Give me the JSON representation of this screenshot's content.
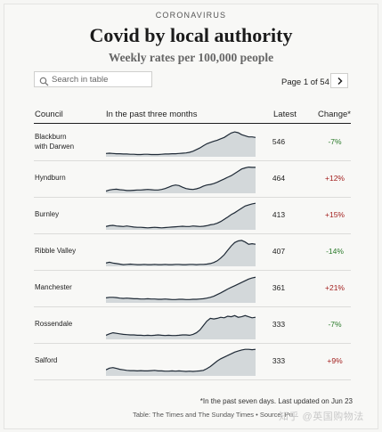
{
  "header": {
    "kicker": "CORONAVIRUS",
    "title": "Covid by local authority",
    "subtitle": "Weekly rates per 100,000 people"
  },
  "search": {
    "placeholder": "Search in table",
    "icon": "search-icon"
  },
  "pager": {
    "label": "Page 1 of 54",
    "next_icon": "chevron-right-icon"
  },
  "table": {
    "columns": {
      "council": "Council",
      "trend": "In the past three months",
      "latest": "Latest",
      "change": "Change*"
    },
    "colors": {
      "spark_fill": "#d3d8da",
      "spark_line": "#1f2a36",
      "positive": "#a3201f",
      "negative": "#2a7a2a"
    },
    "rows": [
      {
        "council": [
          "Blackburn",
          "with Darwen"
        ],
        "latest": "546",
        "change": "-7%",
        "direction": "down",
        "trend": [
          0.12,
          0.13,
          0.12,
          0.11,
          0.11,
          0.1,
          0.1,
          0.09,
          0.09,
          0.08,
          0.08,
          0.09,
          0.09,
          0.08,
          0.08,
          0.08,
          0.09,
          0.1,
          0.1,
          0.11,
          0.11,
          0.12,
          0.13,
          0.14,
          0.16,
          0.2,
          0.26,
          0.32,
          0.4,
          0.47,
          0.52,
          0.56,
          0.6,
          0.65,
          0.7,
          0.78,
          0.86,
          0.9,
          0.87,
          0.8,
          0.76,
          0.72,
          0.72,
          0.7
        ]
      },
      {
        "council": [
          "Hyndburn"
        ],
        "latest": "464",
        "change": "+12%",
        "direction": "up",
        "trend": [
          0.08,
          0.12,
          0.14,
          0.15,
          0.13,
          0.12,
          0.1,
          0.1,
          0.11,
          0.12,
          0.12,
          0.13,
          0.14,
          0.13,
          0.12,
          0.12,
          0.14,
          0.17,
          0.22,
          0.27,
          0.3,
          0.28,
          0.22,
          0.17,
          0.15,
          0.14,
          0.16,
          0.2,
          0.26,
          0.3,
          0.32,
          0.35,
          0.4,
          0.46,
          0.52,
          0.58,
          0.64,
          0.72,
          0.8,
          0.88,
          0.92,
          0.95,
          0.94,
          0.94
        ]
      },
      {
        "council": [
          "Burnley"
        ],
        "latest": "413",
        "change": "+15%",
        "direction": "up",
        "trend": [
          0.12,
          0.15,
          0.16,
          0.14,
          0.13,
          0.12,
          0.14,
          0.12,
          0.1,
          0.09,
          0.09,
          0.08,
          0.07,
          0.08,
          0.09,
          0.08,
          0.07,
          0.08,
          0.09,
          0.1,
          0.11,
          0.12,
          0.13,
          0.12,
          0.12,
          0.14,
          0.13,
          0.12,
          0.13,
          0.15,
          0.18,
          0.2,
          0.24,
          0.3,
          0.38,
          0.46,
          0.55,
          0.62,
          0.7,
          0.78,
          0.86,
          0.9,
          0.94,
          0.96
        ]
      },
      {
        "council": [
          "Ribble Valley"
        ],
        "latest": "407",
        "change": "-14%",
        "direction": "down",
        "trend": [
          0.12,
          0.15,
          0.12,
          0.1,
          0.08,
          0.06,
          0.07,
          0.08,
          0.07,
          0.06,
          0.06,
          0.07,
          0.06,
          0.06,
          0.07,
          0.06,
          0.06,
          0.07,
          0.06,
          0.06,
          0.07,
          0.07,
          0.06,
          0.06,
          0.07,
          0.07,
          0.06,
          0.07,
          0.07,
          0.08,
          0.1,
          0.14,
          0.2,
          0.3,
          0.42,
          0.58,
          0.74,
          0.86,
          0.92,
          0.94,
          0.88,
          0.8,
          0.82,
          0.8
        ]
      },
      {
        "council": [
          "Manchester"
        ],
        "latest": "361",
        "change": "+21%",
        "direction": "up",
        "trend": [
          0.18,
          0.2,
          0.2,
          0.19,
          0.17,
          0.16,
          0.17,
          0.16,
          0.15,
          0.15,
          0.14,
          0.14,
          0.15,
          0.14,
          0.14,
          0.13,
          0.13,
          0.14,
          0.13,
          0.12,
          0.12,
          0.13,
          0.13,
          0.12,
          0.12,
          0.13,
          0.13,
          0.14,
          0.15,
          0.17,
          0.2,
          0.24,
          0.3,
          0.36,
          0.43,
          0.5,
          0.56,
          0.62,
          0.68,
          0.74,
          0.8,
          0.86,
          0.9,
          0.93
        ]
      },
      {
        "council": [
          "Rossendale"
        ],
        "latest": "333",
        "change": "-7%",
        "direction": "down",
        "trend": [
          0.15,
          0.2,
          0.24,
          0.22,
          0.2,
          0.18,
          0.17,
          0.16,
          0.16,
          0.15,
          0.15,
          0.14,
          0.15,
          0.14,
          0.15,
          0.16,
          0.15,
          0.14,
          0.15,
          0.14,
          0.14,
          0.15,
          0.16,
          0.16,
          0.15,
          0.18,
          0.24,
          0.34,
          0.5,
          0.66,
          0.76,
          0.74,
          0.76,
          0.8,
          0.78,
          0.84,
          0.82,
          0.86,
          0.8,
          0.82,
          0.86,
          0.82,
          0.78,
          0.8
        ]
      },
      {
        "council": [
          "Salford"
        ],
        "latest": "333",
        "change": "+9%",
        "direction": "up",
        "trend": [
          0.22,
          0.28,
          0.3,
          0.27,
          0.24,
          0.22,
          0.2,
          0.19,
          0.19,
          0.18,
          0.19,
          0.18,
          0.18,
          0.19,
          0.2,
          0.18,
          0.18,
          0.17,
          0.17,
          0.18,
          0.17,
          0.18,
          0.17,
          0.16,
          0.17,
          0.16,
          0.17,
          0.18,
          0.2,
          0.26,
          0.34,
          0.44,
          0.54,
          0.62,
          0.68,
          0.74,
          0.8,
          0.86,
          0.9,
          0.94,
          0.96,
          0.96,
          0.95,
          0.96
        ]
      }
    ]
  },
  "footnote": "*In the past seven days. Last updated on Jun 23",
  "source": "Table: The Times and The Sunday Times • Source: Pu",
  "watermark": "知乎 @英国购物法"
}
